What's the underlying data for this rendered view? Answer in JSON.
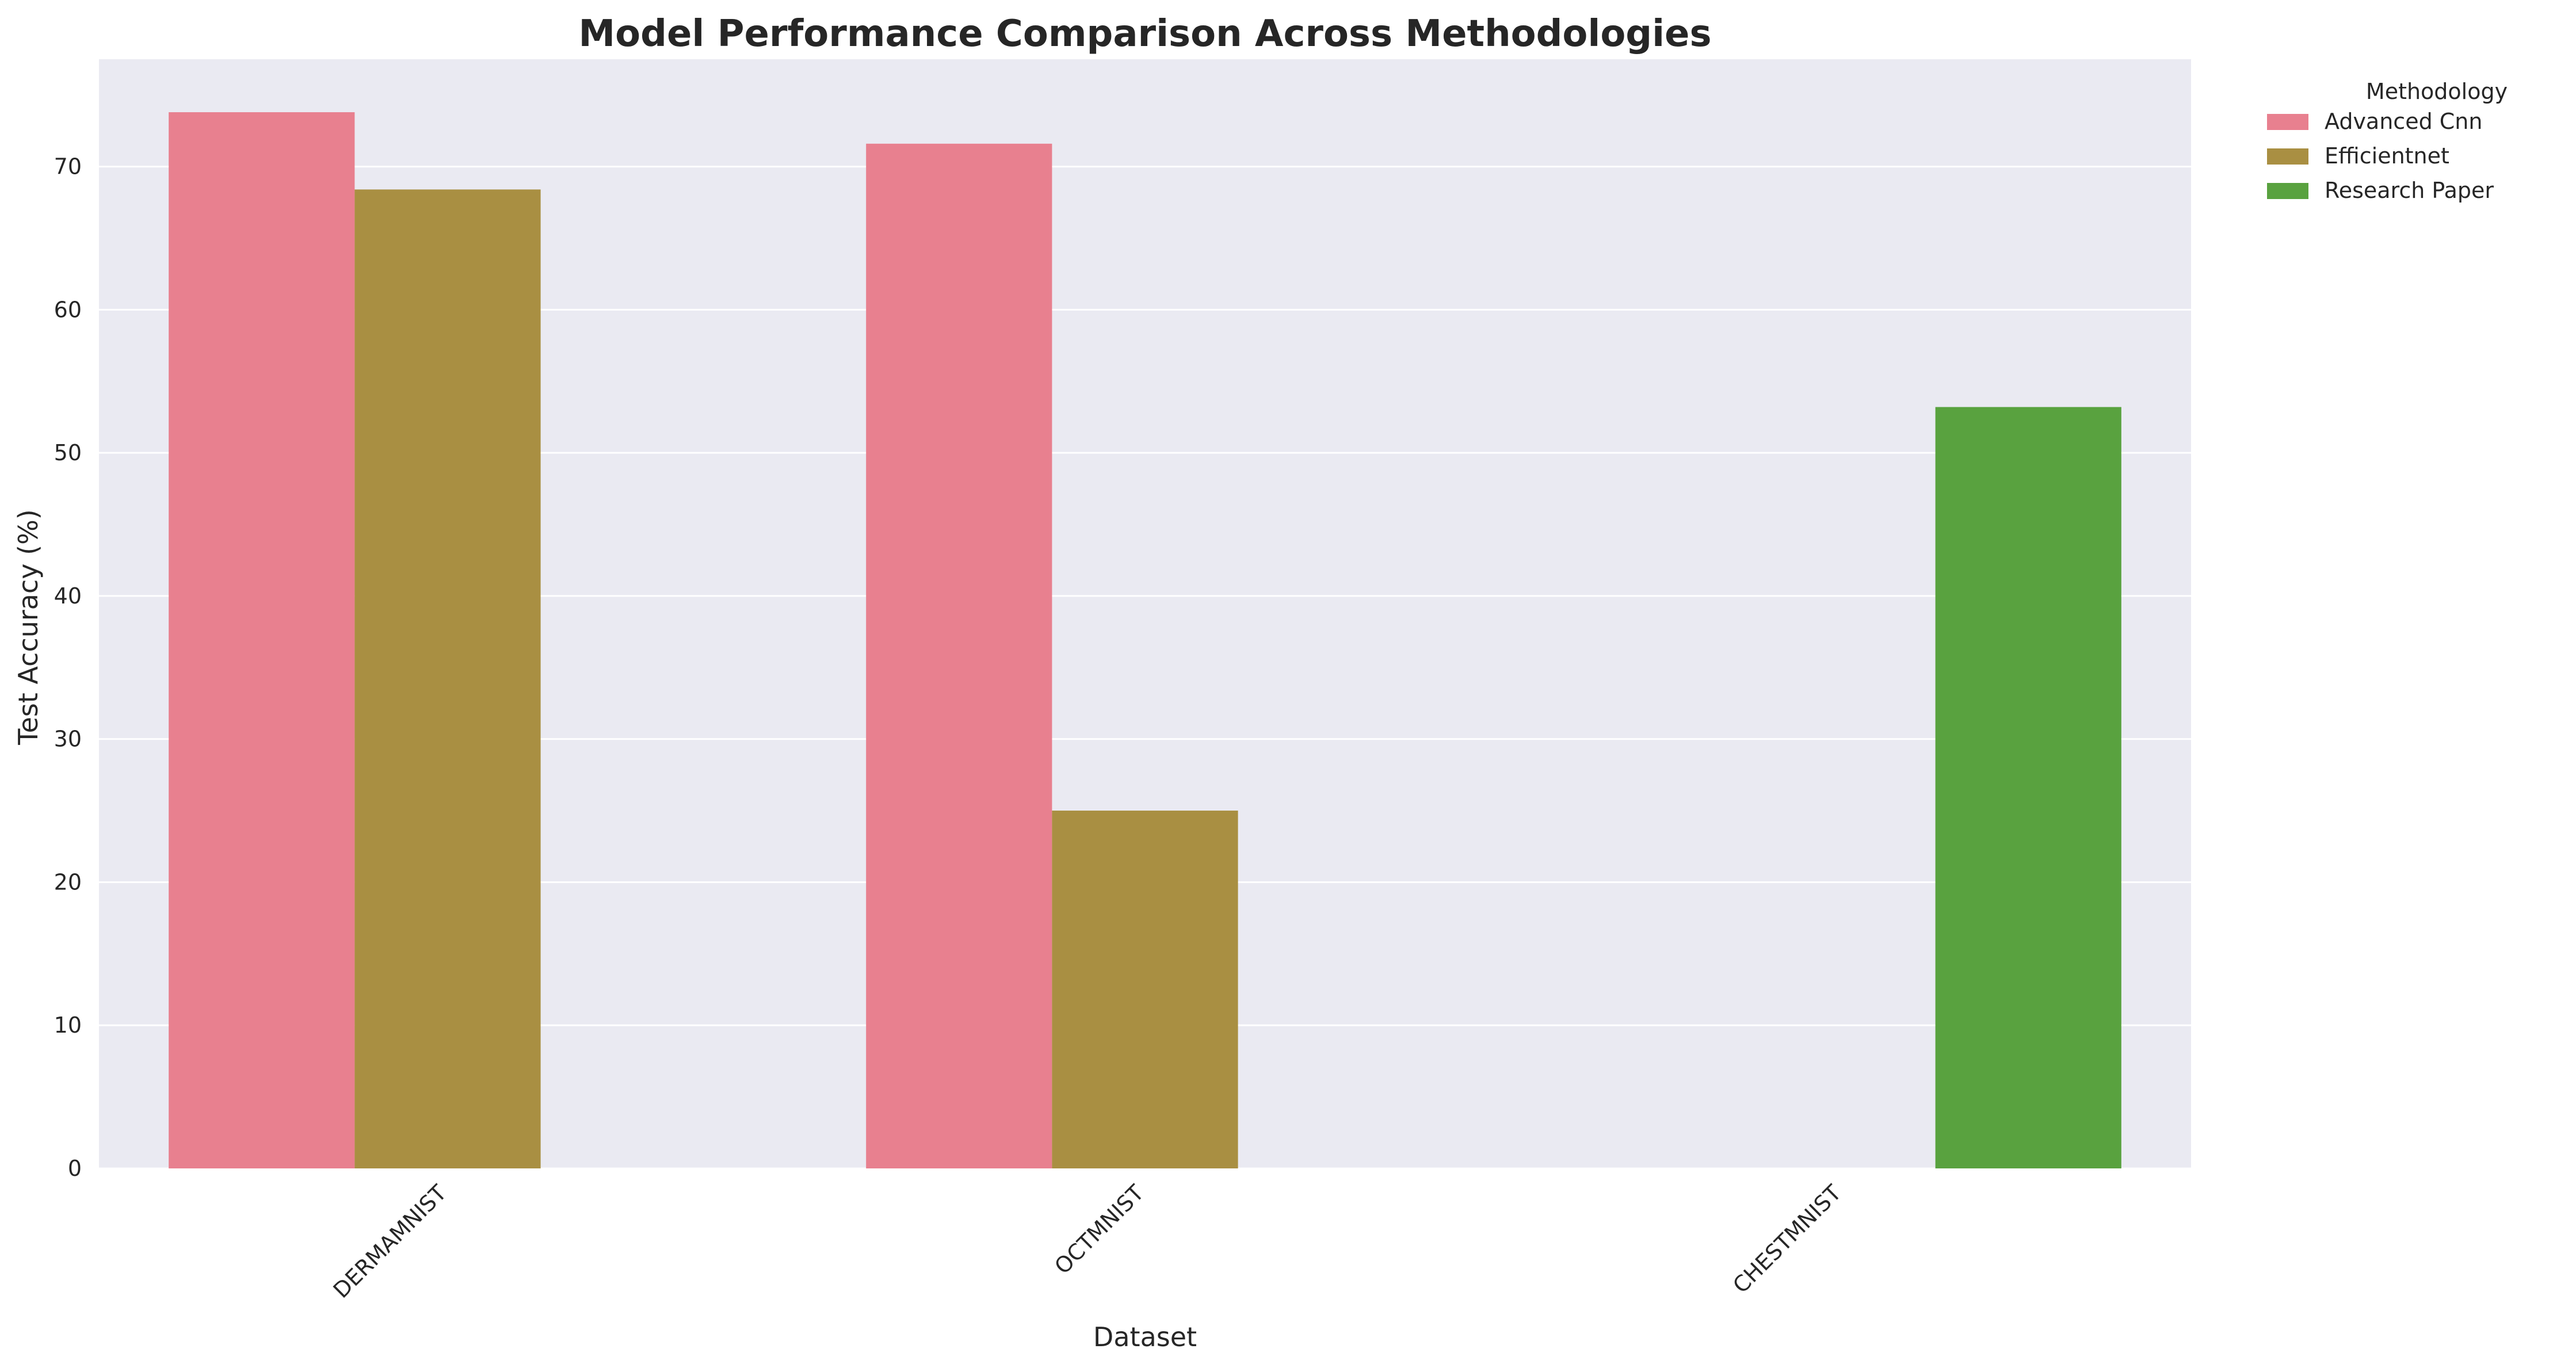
{
  "chart_data": {
    "type": "bar",
    "title": "Model Performance Comparison Across Methodologies",
    "xlabel": "Dataset",
    "ylabel": "Test Accuracy (%)",
    "categories": [
      "DERMAMNIST",
      "OCTMNIST",
      "CHESTMNIST"
    ],
    "series": [
      {
        "name": "Advanced Cnn",
        "color": "#e8808f",
        "values": [
          73.8,
          71.6,
          null
        ]
      },
      {
        "name": "Efficientnet",
        "color": "#a98f42",
        "values": [
          68.4,
          25.0,
          null
        ]
      },
      {
        "name": "Research Paper",
        "color": "#59a23f",
        "values": [
          null,
          null,
          53.2
        ]
      }
    ],
    "ylim": [
      0,
      77.5
    ],
    "yticks": [
      0,
      10,
      20,
      30,
      40,
      50,
      60,
      70
    ],
    "grid": true,
    "legend": {
      "title": "Methodology",
      "placement": "outside-top-right"
    },
    "background_color": "#eaeaf2",
    "xtick_rotation": 45
  }
}
